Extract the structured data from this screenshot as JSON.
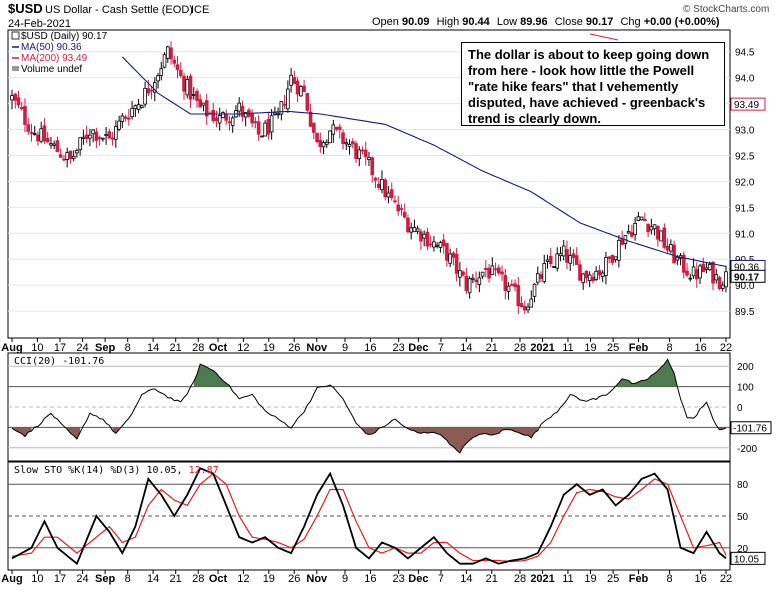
{
  "header": {
    "symbol": "$USD",
    "description": "US Dollar - Cash Settle (EOD)",
    "exchange": "ICE",
    "date": "24-Feb-2021",
    "open_label": "Open",
    "open": "90.09",
    "high_label": "High",
    "high": "90.44",
    "low_label": "Low",
    "low": "89.96",
    "close_label": "Close",
    "close": "90.17",
    "chg_label": "Chg",
    "chg": "+0.00 (+0.00%)",
    "watermark": "© StockCharts.com"
  },
  "legend": {
    "price": "$USD (Daily) 90.17",
    "ma50": "MA(50) 90.36",
    "ma200": "MA(200) 93.49",
    "volume": "Volume undef"
  },
  "annotation": "The dollar is about to keep going down from here - look how little the Powell \"rate hike fears\" that I vehemently disputed, have achieved - greenback's trend is clearly down.",
  "cci_label": "CCI(20) -101.76",
  "sto_label_main": "Slow STO %K(14) %D(3) 10.05,",
  "sto_label_d": "12.87",
  "colors": {
    "up": "#000000",
    "down": "#cc1f43",
    "ma50": "#1a1a7a",
    "ma200": "#cc1f43",
    "cci_fill": "#4f7a4f",
    "cci_fill_neg": "#8b5a55",
    "sto_d": "#e02020"
  },
  "chart_data": [
    {
      "type": "candlestick",
      "title": "$USD (Daily) 90.17",
      "ylim": [
        89.0,
        94.9
      ],
      "yticks": [
        "94.5",
        "94.0",
        "93.5",
        "93.0",
        "92.5",
        "92.0",
        "91.5",
        "91.0",
        "90.5",
        "90.0",
        "89.5"
      ],
      "ytick_values": [
        94.5,
        94.0,
        93.5,
        93.0,
        92.5,
        92.0,
        91.5,
        91.0,
        90.5,
        90.0,
        89.5
      ],
      "price_tags": {
        "ma200": "93.49",
        "ma50": "90.36",
        "close": "90.17"
      },
      "ma50_value": 90.36,
      "close_value": 90.17,
      "ma200_value": 93.49,
      "xticks": [
        "Aug",
        "10",
        "17",
        "24",
        "Sep",
        "8",
        "14",
        "21",
        "28",
        "Oct",
        "12",
        "19",
        "26",
        "Nov",
        "9",
        "16",
        "23",
        "Dec",
        "7",
        "14",
        "21",
        "28",
        "2021",
        "11",
        "19",
        "25",
        "Feb",
        "8",
        "16",
        "22"
      ],
      "close_anchors": [
        [
          0,
          93.6
        ],
        [
          6,
          93.0
        ],
        [
          12,
          92.7
        ],
        [
          18,
          92.4
        ],
        [
          24,
          93.0
        ],
        [
          30,
          92.8
        ],
        [
          34,
          93.2
        ],
        [
          40,
          93.6
        ],
        [
          44,
          94.0
        ],
        [
          48,
          94.5
        ],
        [
          52,
          94.0
        ],
        [
          58,
          93.4
        ],
        [
          64,
          93.2
        ],
        [
          70,
          93.4
        ],
        [
          76,
          92.9
        ],
        [
          82,
          93.2
        ],
        [
          86,
          94.0
        ],
        [
          90,
          93.7
        ],
        [
          94,
          92.7
        ],
        [
          98,
          93.0
        ],
        [
          104,
          92.7
        ],
        [
          110,
          92.3
        ],
        [
          116,
          91.7
        ],
        [
          122,
          91.2
        ],
        [
          128,
          90.9
        ],
        [
          134,
          90.6
        ],
        [
          140,
          90.0
        ],
        [
          146,
          90.3
        ],
        [
          152,
          90.0
        ],
        [
          158,
          89.6
        ],
        [
          164,
          90.3
        ],
        [
          170,
          90.6
        ],
        [
          176,
          90.2
        ],
        [
          182,
          90.3
        ],
        [
          188,
          90.9
        ],
        [
          194,
          91.3
        ],
        [
          198,
          91.1
        ],
        [
          202,
          90.7
        ],
        [
          206,
          90.4
        ],
        [
          210,
          90.2
        ],
        [
          214,
          90.3
        ],
        [
          218,
          90.1
        ],
        [
          220,
          90.17
        ]
      ],
      "ma50_anchors": [
        [
          34,
          94.4
        ],
        [
          45,
          93.7
        ],
        [
          55,
          93.3
        ],
        [
          70,
          93.3
        ],
        [
          85,
          93.35
        ],
        [
          95,
          93.3
        ],
        [
          115,
          93.1
        ],
        [
          130,
          92.7
        ],
        [
          145,
          92.2
        ],
        [
          160,
          91.8
        ],
        [
          175,
          91.2
        ],
        [
          190,
          90.85
        ],
        [
          205,
          90.55
        ],
        [
          220,
          90.36
        ]
      ]
    },
    {
      "type": "line",
      "title": "CCI(20) -101.76",
      "ylim": [
        -260,
        260
      ],
      "yticks": [
        "200",
        "100",
        "0",
        "-100",
        "-200"
      ],
      "ytick_values": [
        200,
        100,
        0,
        -100,
        -200
      ],
      "last_value_tag": "-101.76",
      "anchors": [
        [
          0,
          -100
        ],
        [
          4,
          -140
        ],
        [
          8,
          -90
        ],
        [
          12,
          -30
        ],
        [
          16,
          -100
        ],
        [
          20,
          -160
        ],
        [
          24,
          -30
        ],
        [
          28,
          -60
        ],
        [
          32,
          -130
        ],
        [
          36,
          -60
        ],
        [
          40,
          60
        ],
        [
          44,
          90
        ],
        [
          48,
          50
        ],
        [
          52,
          20
        ],
        [
          56,
          120
        ],
        [
          58,
          210
        ],
        [
          62,
          180
        ],
        [
          66,
          120
        ],
        [
          70,
          40
        ],
        [
          74,
          60
        ],
        [
          78,
          -20
        ],
        [
          82,
          -60
        ],
        [
          86,
          -100
        ],
        [
          90,
          -20
        ],
        [
          94,
          90
        ],
        [
          98,
          110
        ],
        [
          102,
          40
        ],
        [
          106,
          -80
        ],
        [
          110,
          -140
        ],
        [
          114,
          -100
        ],
        [
          118,
          -60
        ],
        [
          122,
          -110
        ],
        [
          126,
          -130
        ],
        [
          130,
          -120
        ],
        [
          134,
          -160
        ],
        [
          136,
          -200
        ],
        [
          138,
          -220
        ],
        [
          140,
          -180
        ],
        [
          144,
          -130
        ],
        [
          148,
          -140
        ],
        [
          152,
          -110
        ],
        [
          156,
          -120
        ],
        [
          160,
          -150
        ],
        [
          164,
          -70
        ],
        [
          168,
          -20
        ],
        [
          172,
          60
        ],
        [
          176,
          30
        ],
        [
          180,
          40
        ],
        [
          184,
          70
        ],
        [
          188,
          140
        ],
        [
          192,
          110
        ],
        [
          196,
          140
        ],
        [
          200,
          190
        ],
        [
          202,
          230
        ],
        [
          204,
          170
        ],
        [
          206,
          40
        ],
        [
          208,
          -50
        ],
        [
          210,
          -60
        ],
        [
          212,
          -10
        ],
        [
          214,
          20
        ],
        [
          216,
          -60
        ],
        [
          218,
          -110
        ],
        [
          220,
          -102
        ]
      ]
    },
    {
      "type": "line",
      "title": "Slow STO %K(14) %D(3)",
      "ylim": [
        0,
        100
      ],
      "yticks": [
        "80",
        "50",
        "20"
      ],
      "ytick_values": [
        80,
        50,
        20
      ],
      "last_value_tag": "10.05",
      "k_anchors": [
        [
          0,
          10
        ],
        [
          6,
          20
        ],
        [
          10,
          45
        ],
        [
          14,
          20
        ],
        [
          20,
          5
        ],
        [
          26,
          50
        ],
        [
          30,
          35
        ],
        [
          34,
          15
        ],
        [
          38,
          40
        ],
        [
          42,
          85
        ],
        [
          46,
          70
        ],
        [
          50,
          50
        ],
        [
          54,
          70
        ],
        [
          58,
          95
        ],
        [
          62,
          90
        ],
        [
          66,
          60
        ],
        [
          70,
          30
        ],
        [
          74,
          25
        ],
        [
          78,
          30
        ],
        [
          82,
          20
        ],
        [
          86,
          15
        ],
        [
          90,
          40
        ],
        [
          94,
          70
        ],
        [
          98,
          90
        ],
        [
          102,
          60
        ],
        [
          106,
          20
        ],
        [
          110,
          10
        ],
        [
          114,
          25
        ],
        [
          118,
          20
        ],
        [
          122,
          10
        ],
        [
          126,
          20
        ],
        [
          130,
          30
        ],
        [
          134,
          15
        ],
        [
          138,
          5
        ],
        [
          142,
          5
        ],
        [
          146,
          10
        ],
        [
          150,
          5
        ],
        [
          154,
          8
        ],
        [
          158,
          10
        ],
        [
          162,
          15
        ],
        [
          166,
          40
        ],
        [
          170,
          70
        ],
        [
          174,
          80
        ],
        [
          178,
          70
        ],
        [
          182,
          75
        ],
        [
          186,
          60
        ],
        [
          190,
          70
        ],
        [
          194,
          85
        ],
        [
          198,
          90
        ],
        [
          202,
          75
        ],
        [
          206,
          20
        ],
        [
          210,
          15
        ],
        [
          214,
          35
        ],
        [
          218,
          15
        ],
        [
          220,
          10.05
        ]
      ],
      "d_anchors": [
        [
          0,
          12
        ],
        [
          6,
          15
        ],
        [
          10,
          30
        ],
        [
          14,
          30
        ],
        [
          20,
          15
        ],
        [
          26,
          30
        ],
        [
          30,
          40
        ],
        [
          34,
          25
        ],
        [
          38,
          30
        ],
        [
          42,
          60
        ],
        [
          46,
          75
        ],
        [
          50,
          65
        ],
        [
          54,
          60
        ],
        [
          58,
          80
        ],
        [
          62,
          90
        ],
        [
          66,
          80
        ],
        [
          70,
          50
        ],
        [
          74,
          30
        ],
        [
          78,
          28
        ],
        [
          82,
          25
        ],
        [
          86,
          20
        ],
        [
          90,
          28
        ],
        [
          94,
          50
        ],
        [
          98,
          75
        ],
        [
          102,
          75
        ],
        [
          106,
          45
        ],
        [
          110,
          20
        ],
        [
          114,
          15
        ],
        [
          118,
          20
        ],
        [
          122,
          15
        ],
        [
          126,
          15
        ],
        [
          130,
          25
        ],
        [
          134,
          25
        ],
        [
          138,
          15
        ],
        [
          142,
          8
        ],
        [
          146,
          8
        ],
        [
          150,
          8
        ],
        [
          154,
          7
        ],
        [
          158,
          8
        ],
        [
          162,
          12
        ],
        [
          166,
          25
        ],
        [
          170,
          50
        ],
        [
          174,
          72
        ],
        [
          178,
          75
        ],
        [
          182,
          73
        ],
        [
          186,
          68
        ],
        [
          190,
          66
        ],
        [
          194,
          75
        ],
        [
          198,
          85
        ],
        [
          202,
          80
        ],
        [
          206,
          50
        ],
        [
          210,
          20
        ],
        [
          214,
          22
        ],
        [
          218,
          25
        ],
        [
          220,
          12.87
        ]
      ]
    }
  ]
}
